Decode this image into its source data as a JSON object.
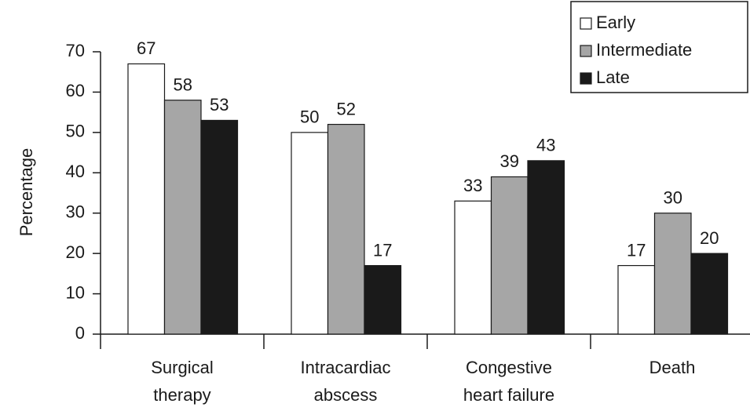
{
  "chart_data": {
    "type": "bar",
    "y_label": "Percentage",
    "categories": [
      "Surgical\ntherapy",
      "Intracardiac\nabscess",
      "Congestive\nheart failure",
      "Death"
    ],
    "series": [
      {
        "name": "Early",
        "color": "#ffffff",
        "values": [
          67,
          50,
          33,
          17
        ]
      },
      {
        "name": "Intermediate",
        "color": "#a6a6a6",
        "values": [
          58,
          52,
          39,
          30
        ]
      },
      {
        "name": "Late",
        "color": "#1a1a1a",
        "values": [
          53,
          17,
          43,
          20
        ]
      }
    ],
    "ylim": [
      0,
      70
    ],
    "yticks": [
      0,
      10,
      20,
      30,
      40,
      50,
      60,
      70
    ],
    "grid": false,
    "legend": "upper right"
  }
}
